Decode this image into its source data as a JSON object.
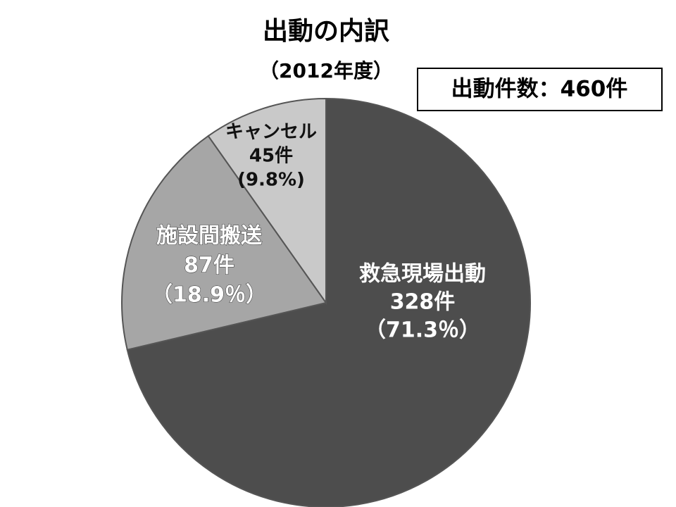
{
  "chart_data": {
    "type": "pie",
    "title": "出動の内訳",
    "subtitle": "（2012年度）",
    "annotation": "出動件数：460件",
    "categories": [
      "救急現場出動",
      "施設間搬送",
      "キャンセル"
    ],
    "values": [
      328,
      87,
      45
    ],
    "value_labels": [
      "328件",
      "87件",
      "45件"
    ],
    "percent_labels": [
      "（71.3％）",
      "（18.9％）",
      "(9.8%)"
    ],
    "colors": [
      "#4d4d4d",
      "#a6a6a6",
      "#c9c9c9"
    ]
  }
}
